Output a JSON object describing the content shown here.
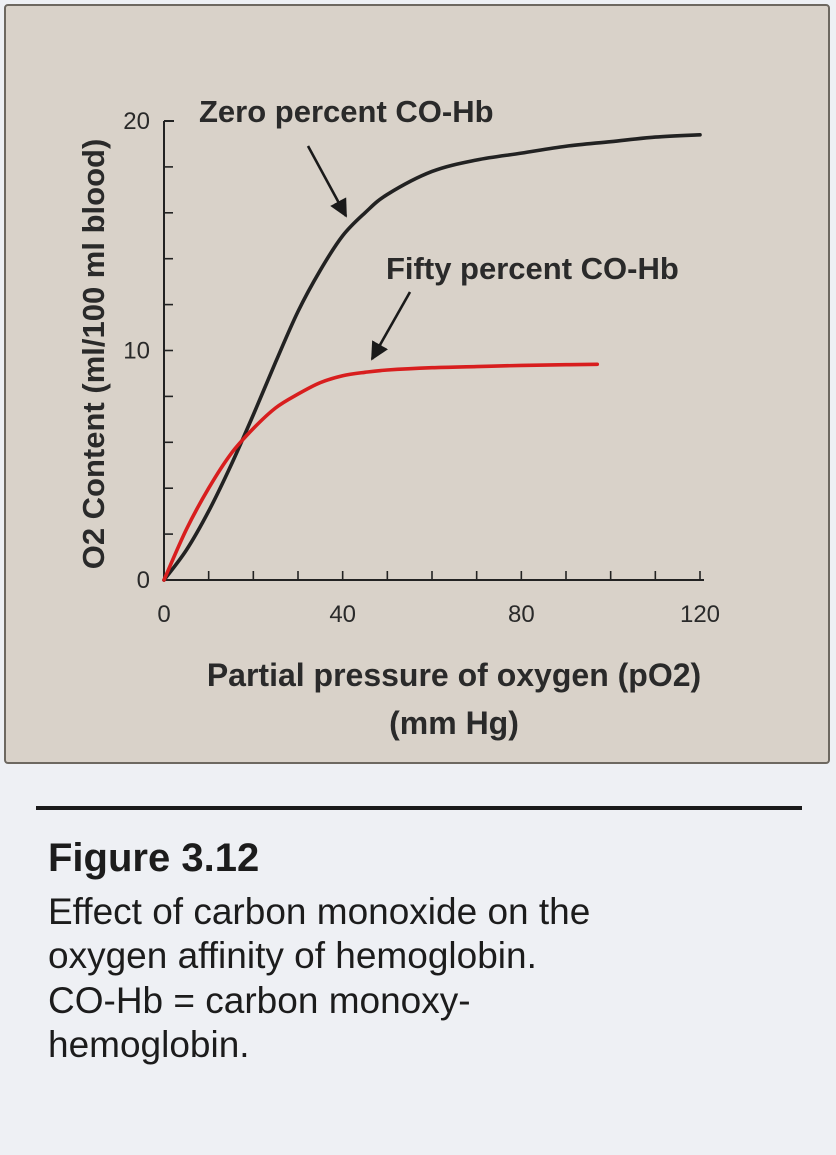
{
  "chart_data": {
    "type": "line",
    "ylabel": "O2 Content (ml/100 ml blood)",
    "xlabel": "Partial pressure of oxygen (pO2)",
    "xlabel_units": "(mm Hg)",
    "xlim": [
      0,
      120
    ],
    "ylim": [
      0,
      20
    ],
    "x_ticks": [
      0,
      40,
      80,
      120
    ],
    "y_ticks": [
      0,
      10,
      20
    ],
    "grid": false,
    "series": [
      {
        "name": "Zero percent CO-Hb",
        "color": "#222222",
        "x": [
          0,
          5,
          10,
          15,
          20,
          25,
          30,
          35,
          40,
          45,
          50,
          60,
          70,
          80,
          90,
          100,
          110,
          120
        ],
        "y": [
          0,
          1.3,
          3.0,
          5.0,
          7.2,
          9.5,
          11.7,
          13.5,
          15.0,
          16.0,
          16.8,
          17.8,
          18.3,
          18.6,
          18.9,
          19.1,
          19.3,
          19.4
        ]
      },
      {
        "name": "Fifty percent CO-Hb",
        "color": "#d81e1e",
        "x": [
          0,
          5,
          10,
          15,
          20,
          25,
          30,
          35,
          40,
          45,
          50,
          60,
          70,
          80,
          90,
          97
        ],
        "y": [
          0,
          2.2,
          4.0,
          5.5,
          6.6,
          7.5,
          8.1,
          8.6,
          8.9,
          9.05,
          9.15,
          9.25,
          9.3,
          9.35,
          9.38,
          9.4
        ]
      }
    ],
    "annotations": [
      {
        "text": "Zero percent CO-Hb",
        "series": 0
      },
      {
        "text": "Fifty percent CO-Hb",
        "series": 1
      }
    ]
  },
  "caption": {
    "figure_label": "Figure 3.12",
    "lines": [
      "Effect of carbon monoxide on the",
      "oxygen affinity of hemoglobin.",
      "CO-Hb = carbon monoxy-",
      "hemoglobin."
    ]
  }
}
